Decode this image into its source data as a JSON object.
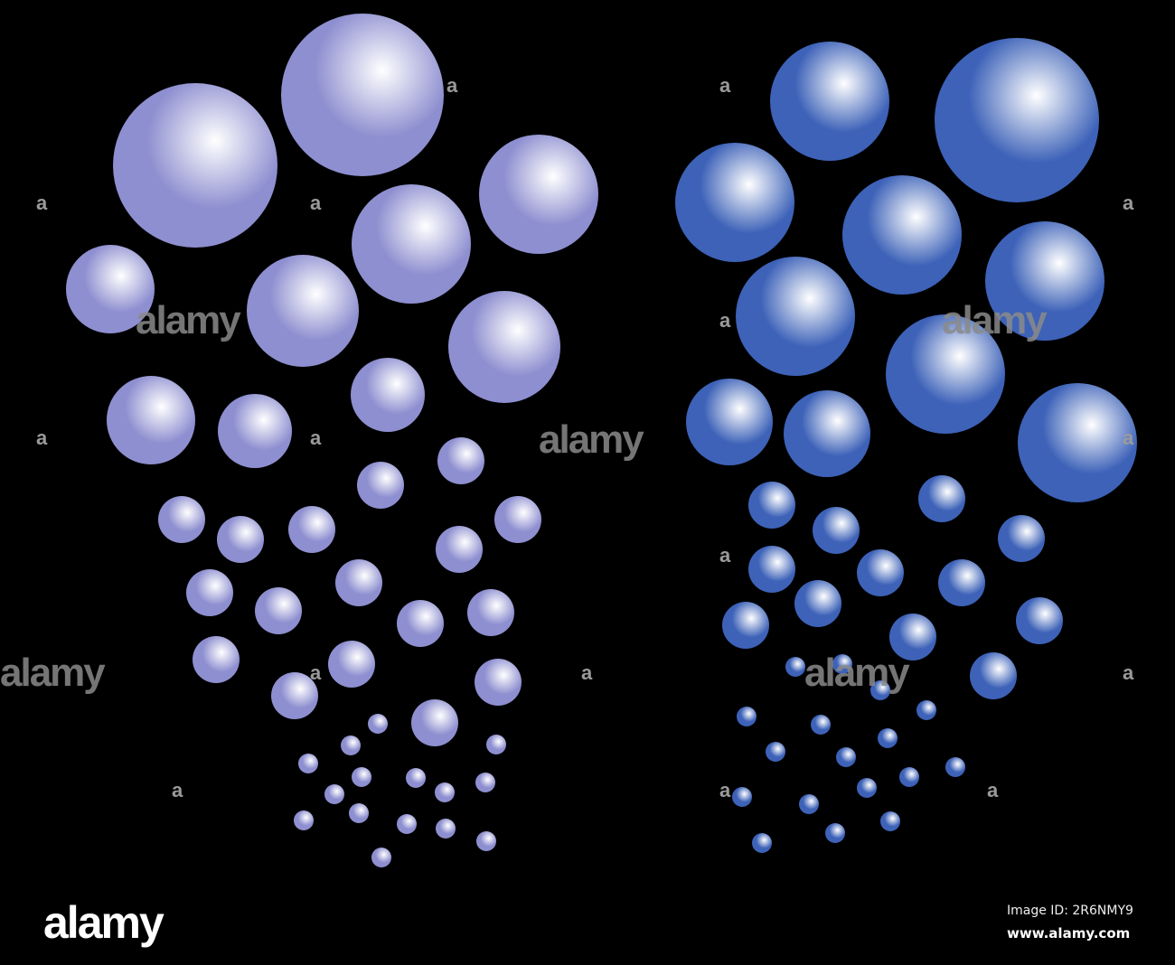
{
  "colors": {
    "background": "#000000",
    "left_spheres": "#8e8fd0",
    "left_highlight": "#ffffff",
    "right_spheres": "#3d62b8",
    "right_highlight": "#ffffff"
  },
  "watermark": {
    "text": "alamy",
    "mark": "a"
  },
  "footer": {
    "logo": "alamy",
    "image_id": "Image ID: 2R6NMY9",
    "url": "www.alamy.com"
  }
}
